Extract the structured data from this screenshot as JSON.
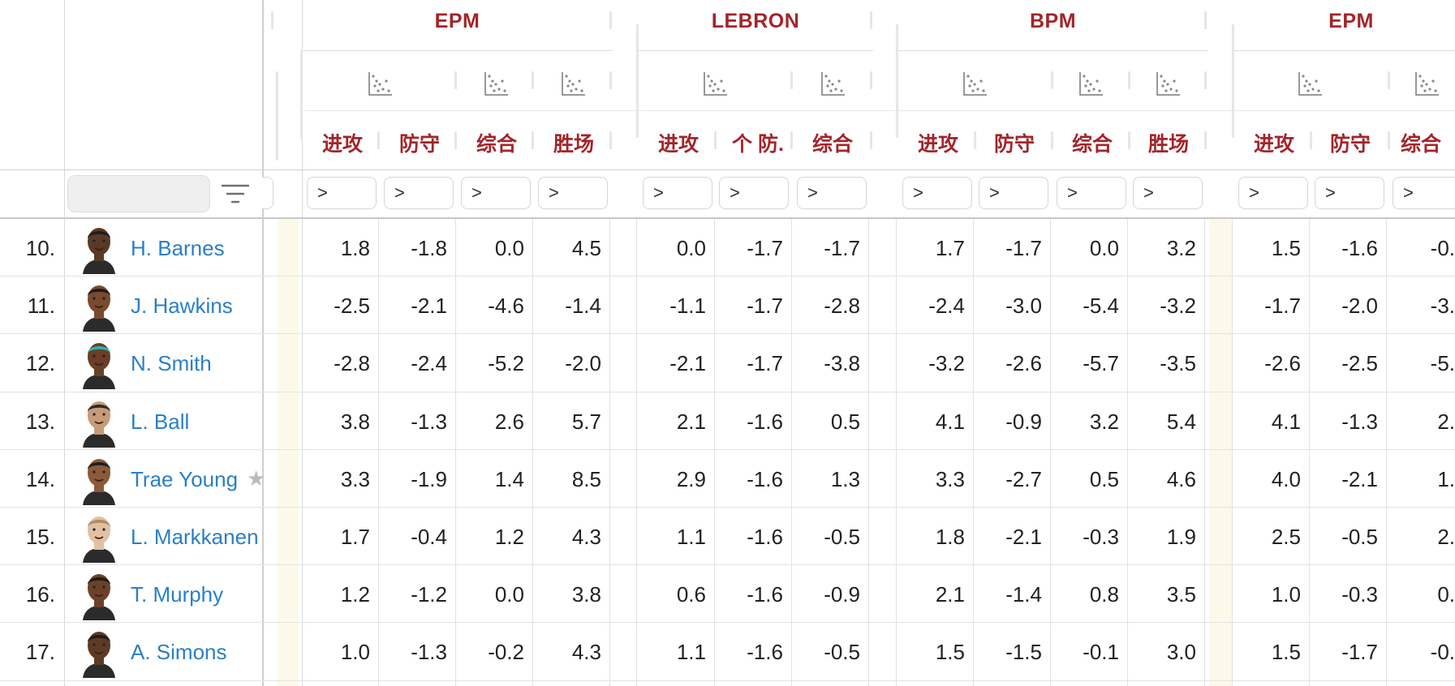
{
  "groups": [
    {
      "title": "EPM",
      "columns": [
        "进攻",
        "防守",
        "综合",
        "胜场"
      ]
    },
    {
      "title": "LEBRON",
      "columns": [
        "进攻",
        "个 防.",
        "综合"
      ]
    },
    {
      "title": "BPM",
      "columns": [
        "进攻",
        "防守",
        "综合",
        "胜场"
      ]
    },
    {
      "title": "EPM",
      "columns": [
        "进攻",
        "防守",
        "综合"
      ]
    }
  ],
  "filter_symbol": ">",
  "icons": {
    "chart": "scatter-chart-icon",
    "filter": "filter-lines-icon",
    "star": "star-icon"
  },
  "star_glyph": "★",
  "rows": [
    {
      "rank": "10.",
      "name": "H. Barnes",
      "values": [
        "1.8",
        "-1.8",
        "0.0",
        "4.5",
        "0.0",
        "-1.7",
        "-1.7",
        "1.7",
        "-1.7",
        "0.0",
        "3.2",
        "1.5",
        "-1.6",
        "-0."
      ]
    },
    {
      "rank": "11.",
      "name": "J. Hawkins",
      "values": [
        "-2.5",
        "-2.1",
        "-4.6",
        "-1.4",
        "-1.1",
        "-1.7",
        "-2.8",
        "-2.4",
        "-3.0",
        "-5.4",
        "-3.2",
        "-1.7",
        "-2.0",
        "-3."
      ]
    },
    {
      "rank": "12.",
      "name": "N. Smith",
      "values": [
        "-2.8",
        "-2.4",
        "-5.2",
        "-2.0",
        "-2.1",
        "-1.7",
        "-3.8",
        "-3.2",
        "-2.6",
        "-5.7",
        "-3.5",
        "-2.6",
        "-2.5",
        "-5."
      ]
    },
    {
      "rank": "13.",
      "name": "L. Ball",
      "values": [
        "3.8",
        "-1.3",
        "2.6",
        "5.7",
        "2.1",
        "-1.6",
        "0.5",
        "4.1",
        "-0.9",
        "3.2",
        "5.4",
        "4.1",
        "-1.3",
        "2."
      ]
    },
    {
      "rank": "14.",
      "name": "Trae Young",
      "star": true,
      "values": [
        "3.3",
        "-1.9",
        "1.4",
        "8.5",
        "2.9",
        "-1.6",
        "1.3",
        "3.3",
        "-2.7",
        "0.5",
        "4.6",
        "4.0",
        "-2.1",
        "1."
      ]
    },
    {
      "rank": "15.",
      "name": "L. Markkanen",
      "values": [
        "1.7",
        "-0.4",
        "1.2",
        "4.3",
        "1.1",
        "-1.6",
        "-0.5",
        "1.8",
        "-2.1",
        "-0.3",
        "1.9",
        "2.5",
        "-0.5",
        "2."
      ]
    },
    {
      "rank": "16.",
      "name": "T. Murphy",
      "values": [
        "1.2",
        "-1.2",
        "0.0",
        "3.8",
        "0.6",
        "-1.6",
        "-0.9",
        "2.1",
        "-1.4",
        "0.8",
        "3.5",
        "1.0",
        "-0.3",
        "0."
      ]
    },
    {
      "rank": "17.",
      "name": "A. Simons",
      "values": [
        "1.0",
        "-1.3",
        "-0.2",
        "4.3",
        "1.1",
        "-1.6",
        "-0.5",
        "1.5",
        "-1.5",
        "-0.1",
        "3.0",
        "1.5",
        "-1.7",
        "-0."
      ]
    }
  ],
  "colors": {
    "header_text": "#a3242a",
    "player_link": "#2a7fc6",
    "grid": "#dcdcdc",
    "stripe": "#fdf9ea"
  }
}
